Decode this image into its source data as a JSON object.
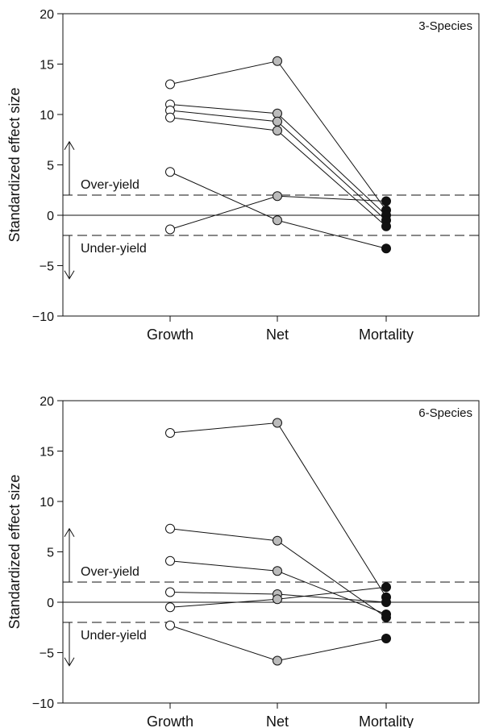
{
  "chart_data": [
    {
      "type": "line",
      "title": "3-Species",
      "ylabel": "Standardized effect size",
      "xlabel": "",
      "categories": [
        "Growth",
        "Net",
        "Mortality"
      ],
      "ylim": [
        -10,
        20
      ],
      "yticks": [
        -10,
        -5,
        0,
        5,
        10,
        15,
        20
      ],
      "ytick_labels": [
        "−10",
        "−5",
        "0",
        "5",
        "10",
        "15",
        "20"
      ],
      "reference_lines": [
        {
          "y": 0,
          "style": "solid"
        },
        {
          "y": 2,
          "style": "dashed"
        },
        {
          "y": -2,
          "style": "dashed"
        }
      ],
      "annotations": {
        "over": "Over-yield",
        "under": "Under-yield"
      },
      "marker_fills": [
        "#ffffff",
        "#bbbbbb",
        "#111111"
      ],
      "series": [
        {
          "values": [
            13.0,
            15.3,
            0.5
          ]
        },
        {
          "values": [
            11.0,
            10.1,
            0.0
          ]
        },
        {
          "values": [
            10.4,
            9.3,
            -0.5
          ]
        },
        {
          "values": [
            9.7,
            8.4,
            -1.1
          ]
        },
        {
          "values": [
            4.3,
            -0.5,
            -3.3
          ]
        },
        {
          "values": [
            -1.4,
            1.9,
            1.4
          ]
        }
      ],
      "legend": "none",
      "grid": false
    },
    {
      "type": "line",
      "title": "6-Species",
      "ylabel": "Standardized effect size",
      "xlabel": "",
      "categories": [
        "Growth",
        "Net",
        "Mortality"
      ],
      "ylim": [
        -10,
        20
      ],
      "yticks": [
        -10,
        -5,
        0,
        5,
        10,
        15,
        20
      ],
      "ytick_labels": [
        "−10",
        "−5",
        "0",
        "5",
        "10",
        "15",
        "20"
      ],
      "reference_lines": [
        {
          "y": 0,
          "style": "solid"
        },
        {
          "y": 2,
          "style": "dashed"
        },
        {
          "y": -2,
          "style": "dashed"
        }
      ],
      "annotations": {
        "over": "Over-yield",
        "under": "Under-yield"
      },
      "marker_fills": [
        "#ffffff",
        "#bbbbbb",
        "#111111"
      ],
      "series": [
        {
          "values": [
            16.8,
            17.8,
            0.5
          ]
        },
        {
          "values": [
            7.3,
            6.1,
            -1.5
          ]
        },
        {
          "values": [
            4.1,
            3.1,
            -1.2
          ]
        },
        {
          "values": [
            1.0,
            0.8,
            0.0
          ]
        },
        {
          "values": [
            -0.5,
            0.3,
            1.5
          ]
        },
        {
          "values": [
            -2.3,
            -5.8,
            -3.6
          ]
        }
      ],
      "legend": "none",
      "grid": false
    }
  ]
}
